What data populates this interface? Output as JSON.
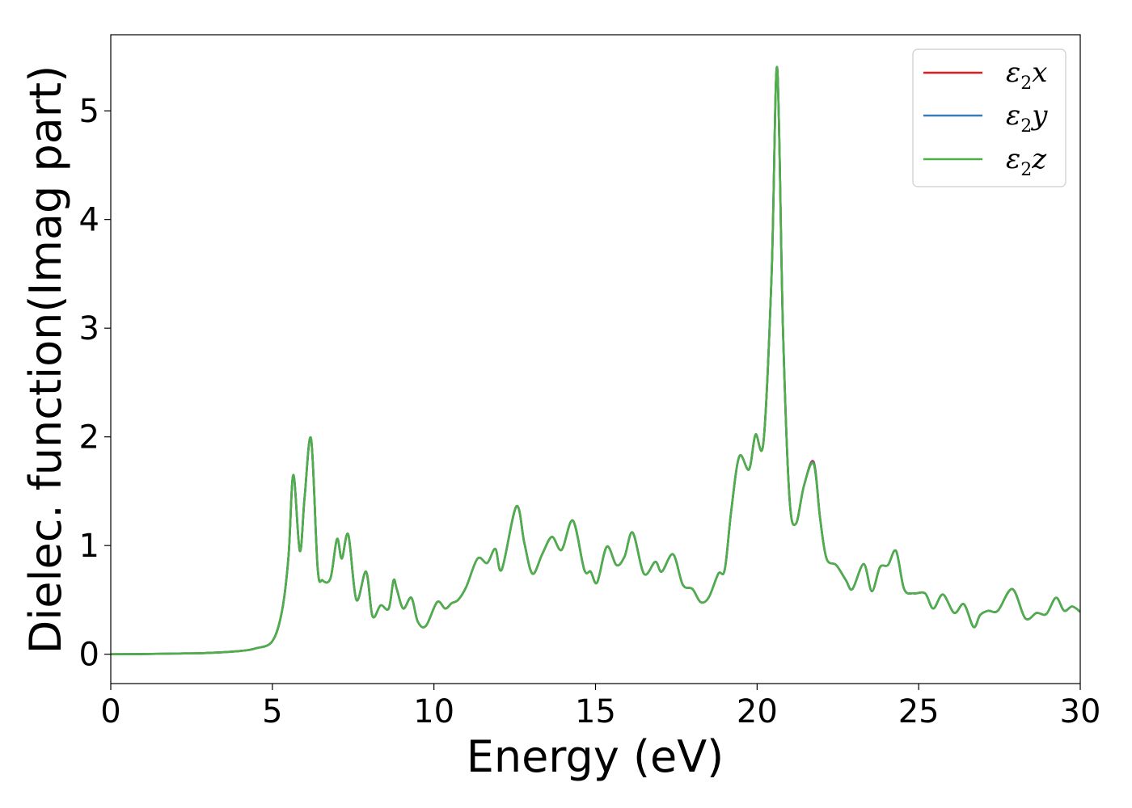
{
  "chart_data": {
    "type": "line",
    "title": "",
    "xlabel": "Energy (eV)",
    "ylabel": "Dielec. function(Imag part)",
    "xlim": [
      0,
      30
    ],
    "ylim": [
      -0.27,
      5.7
    ],
    "xticks": [
      "0",
      "5",
      "10",
      "15",
      "20",
      "25",
      "30"
    ],
    "yticks": [
      "0",
      "1",
      "2",
      "3",
      "4",
      "5"
    ],
    "grid": false,
    "legend_position": "top-right",
    "x": [
      0,
      1,
      2,
      3,
      4,
      4.5,
      5,
      5.3,
      5.5,
      5.65,
      5.85,
      6.0,
      6.2,
      6.4,
      6.55,
      6.8,
      7.0,
      7.15,
      7.35,
      7.6,
      7.9,
      8.1,
      8.35,
      8.6,
      8.75,
      8.85,
      9.05,
      9.3,
      9.5,
      9.75,
      10.1,
      10.35,
      10.55,
      10.75,
      11.0,
      11.35,
      11.65,
      11.9,
      12.1,
      12.55,
      12.8,
      13.05,
      13.35,
      13.65,
      13.95,
      14.3,
      14.65,
      14.85,
      15.05,
      15.35,
      15.65,
      15.9,
      16.15,
      16.5,
      16.85,
      17.05,
      17.4,
      17.7,
      18.0,
      18.25,
      18.5,
      18.8,
      19.0,
      19.2,
      19.45,
      19.75,
      19.95,
      20.2,
      20.45,
      20.62,
      20.8,
      21.0,
      21.2,
      21.45,
      21.75,
      21.95,
      22.15,
      22.45,
      22.75,
      22.95,
      23.3,
      23.55,
      23.8,
      24.05,
      24.3,
      24.55,
      24.85,
      25.2,
      25.45,
      25.75,
      26.1,
      26.4,
      26.7,
      26.9,
      27.15,
      27.45,
      27.9,
      28.3,
      28.65,
      28.95,
      29.25,
      29.5,
      29.75,
      30.0
    ],
    "series": [
      {
        "name": "ε2x",
        "color": "#e41a1c",
        "values": [
          0.0,
          0.002,
          0.006,
          0.012,
          0.03,
          0.055,
          0.12,
          0.4,
          0.9,
          1.65,
          0.95,
          1.45,
          1.98,
          0.8,
          0.68,
          0.7,
          1.06,
          0.88,
          1.1,
          0.5,
          0.76,
          0.35,
          0.45,
          0.42,
          0.68,
          0.6,
          0.42,
          0.52,
          0.3,
          0.26,
          0.48,
          0.42,
          0.47,
          0.5,
          0.62,
          0.88,
          0.84,
          0.97,
          0.78,
          1.36,
          1.02,
          0.74,
          0.92,
          1.08,
          0.96,
          1.23,
          0.78,
          0.76,
          0.66,
          0.99,
          0.82,
          0.9,
          1.12,
          0.74,
          0.85,
          0.76,
          0.92,
          0.64,
          0.6,
          0.48,
          0.52,
          0.74,
          0.78,
          1.32,
          1.82,
          1.7,
          2.02,
          1.96,
          3.5,
          5.4,
          3.0,
          1.45,
          1.2,
          1.55,
          1.77,
          1.25,
          0.88,
          0.82,
          0.68,
          0.6,
          0.83,
          0.58,
          0.8,
          0.82,
          0.95,
          0.6,
          0.56,
          0.56,
          0.42,
          0.55,
          0.38,
          0.46,
          0.25,
          0.36,
          0.4,
          0.4,
          0.6,
          0.33,
          0.38,
          0.37,
          0.52,
          0.4,
          0.44,
          0.39
        ]
      },
      {
        "name": "ε2y",
        "color": "#377eb8",
        "values": [
          0.0,
          0.002,
          0.006,
          0.012,
          0.03,
          0.055,
          0.12,
          0.4,
          0.9,
          1.65,
          0.95,
          1.45,
          1.98,
          0.8,
          0.68,
          0.7,
          1.06,
          0.88,
          1.1,
          0.5,
          0.76,
          0.35,
          0.45,
          0.42,
          0.68,
          0.6,
          0.42,
          0.52,
          0.3,
          0.26,
          0.48,
          0.42,
          0.47,
          0.5,
          0.62,
          0.88,
          0.84,
          0.97,
          0.78,
          1.36,
          1.02,
          0.74,
          0.92,
          1.08,
          0.96,
          1.23,
          0.78,
          0.76,
          0.66,
          0.99,
          0.82,
          0.9,
          1.12,
          0.74,
          0.85,
          0.76,
          0.92,
          0.64,
          0.6,
          0.48,
          0.52,
          0.74,
          0.78,
          1.32,
          1.82,
          1.7,
          2.02,
          1.96,
          3.5,
          5.4,
          3.0,
          1.45,
          1.2,
          1.55,
          1.76,
          1.25,
          0.88,
          0.82,
          0.68,
          0.6,
          0.83,
          0.58,
          0.8,
          0.82,
          0.95,
          0.6,
          0.56,
          0.56,
          0.42,
          0.55,
          0.38,
          0.46,
          0.25,
          0.36,
          0.4,
          0.4,
          0.6,
          0.33,
          0.38,
          0.37,
          0.52,
          0.4,
          0.44,
          0.39
        ]
      },
      {
        "name": "ε2z",
        "color": "#4daf4a",
        "values": [
          0.0,
          0.002,
          0.006,
          0.012,
          0.03,
          0.055,
          0.12,
          0.4,
          0.9,
          1.65,
          0.95,
          1.45,
          1.98,
          0.8,
          0.68,
          0.7,
          1.06,
          0.88,
          1.1,
          0.5,
          0.76,
          0.35,
          0.45,
          0.42,
          0.68,
          0.6,
          0.42,
          0.52,
          0.3,
          0.26,
          0.48,
          0.42,
          0.47,
          0.5,
          0.62,
          0.88,
          0.84,
          0.97,
          0.78,
          1.36,
          1.02,
          0.74,
          0.92,
          1.08,
          0.96,
          1.23,
          0.78,
          0.76,
          0.66,
          0.99,
          0.82,
          0.9,
          1.12,
          0.74,
          0.85,
          0.76,
          0.92,
          0.64,
          0.6,
          0.48,
          0.52,
          0.74,
          0.78,
          1.32,
          1.82,
          1.7,
          2.02,
          1.96,
          3.5,
          5.4,
          3.0,
          1.45,
          1.2,
          1.55,
          1.75,
          1.25,
          0.88,
          0.82,
          0.68,
          0.6,
          0.83,
          0.58,
          0.8,
          0.82,
          0.95,
          0.6,
          0.56,
          0.56,
          0.42,
          0.55,
          0.38,
          0.46,
          0.25,
          0.36,
          0.4,
          0.4,
          0.6,
          0.33,
          0.38,
          0.37,
          0.52,
          0.4,
          0.44,
          0.39
        ]
      }
    ],
    "legend": {
      "entries": [
        {
          "symbol": "ε",
          "subscript": "2",
          "axis": "x"
        },
        {
          "symbol": "ε",
          "subscript": "2",
          "axis": "y"
        },
        {
          "symbol": "ε",
          "subscript": "2",
          "axis": "z"
        }
      ]
    }
  }
}
